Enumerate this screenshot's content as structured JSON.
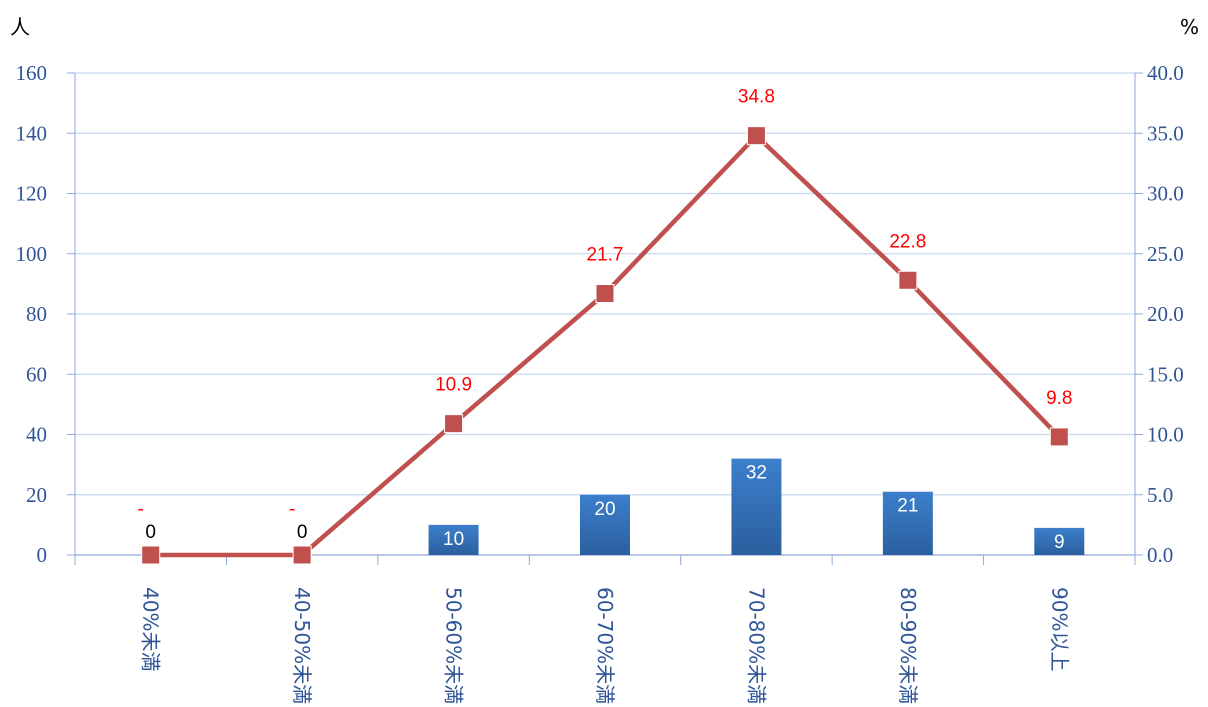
{
  "chart_data": {
    "type": "bar",
    "categories": [
      "40%未満",
      "40-50%未満",
      "50-60%未満",
      "60-70%未満",
      "70-80%未満",
      "80-90%未満",
      "90%以上"
    ],
    "series": [
      {
        "type": "bar",
        "axis": "left",
        "values": [
          0,
          0,
          10,
          20,
          32,
          21,
          9
        ],
        "labels": [
          "0",
          "0",
          "10",
          "20",
          "32",
          "21",
          "9"
        ]
      },
      {
        "type": "line",
        "axis": "right",
        "values": [
          0,
          0,
          10.9,
          21.7,
          34.8,
          22.8,
          9.8
        ],
        "labels": [
          "-",
          "-",
          "10.9",
          "21.7",
          "34.8",
          "22.8",
          "9.8"
        ]
      }
    ],
    "y_left": {
      "unit": "人",
      "ylim": [
        0,
        160
      ],
      "ticks": [
        "0",
        "20",
        "40",
        "60",
        "80",
        "100",
        "120",
        "140",
        "160"
      ]
    },
    "y_right": {
      "unit": "%",
      "ylim": [
        0,
        40
      ],
      "ticks": [
        "0.0",
        "5.0",
        "10.0",
        "15.0",
        "20.0",
        "25.0",
        "30.0",
        "35.0",
        "40.0"
      ]
    },
    "grid": true,
    "colors": {
      "bar": "#2e6db4",
      "line": "#c0504d",
      "line_label": "#ff0000",
      "axis_text": "#2f5597",
      "grid": "#c6d9f1"
    }
  }
}
